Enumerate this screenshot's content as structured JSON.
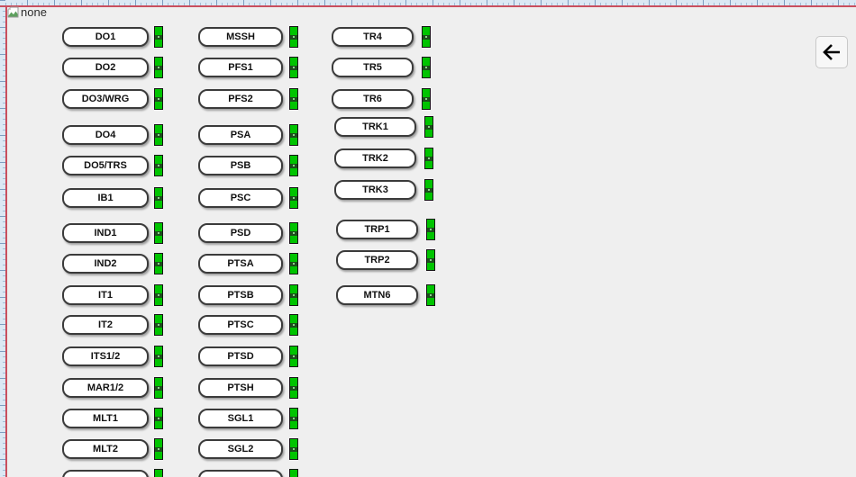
{
  "canvas": {
    "broken_image_alt": "none"
  },
  "back_button": {
    "icon": "arrow-left-icon"
  },
  "colors": {
    "indicator_green": "#00c400",
    "selection_border": "#c94f5f",
    "canvas_bg": "#efefef"
  },
  "columns": [
    {
      "name": "column-1",
      "items": [
        "DO1",
        "DO2",
        "DO3/WRG",
        "DO4",
        "DO5/TRS",
        "IB1",
        "IND1",
        "IND2",
        "IT1",
        "IT2",
        "ITS1/2",
        "MAR1/2",
        "MLT1",
        "MLT2",
        ""
      ]
    },
    {
      "name": "column-2",
      "items": [
        "MSSH",
        "PFS1",
        "PFS2",
        "PSA",
        "PSB",
        "PSC",
        "PSD",
        "PTSA",
        "PTSB",
        "PTSC",
        "PTSD",
        "PTSH",
        "SGL1",
        "SGL2",
        ""
      ]
    },
    {
      "name": "column-3",
      "items": [
        "TR4",
        "TR5",
        "TR6",
        "TRK1",
        "TRK2",
        "TRK3",
        "TRP1",
        "TRP2",
        "MTN6"
      ]
    }
  ]
}
